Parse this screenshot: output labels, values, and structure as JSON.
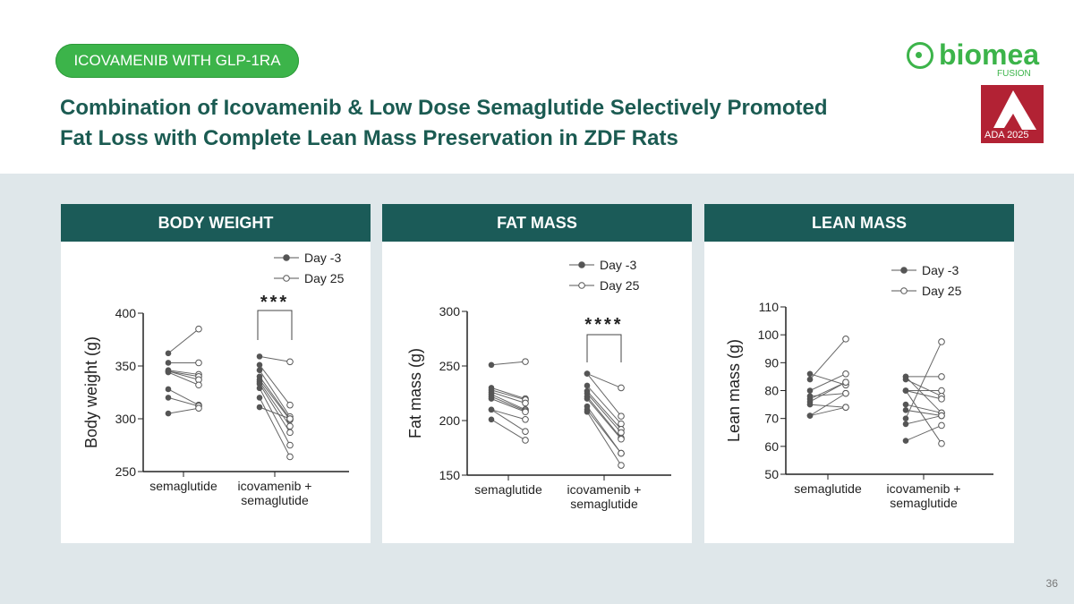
{
  "header": {
    "badge": "ICOVAMENIB WITH GLP-1RA",
    "title_line1": "Combination of Icovamenib & Low Dose Semaglutide Selectively Promoted",
    "title_line2": "Fat Loss with Complete Lean Mass Preservation in ZDF Rats",
    "logo_text": "biomea",
    "logo_sub": "FUSION",
    "ada_text": "ADA 2025"
  },
  "page_number": "36",
  "chart_data": [
    {
      "type": "scatter",
      "title": "BODY WEIGHT",
      "ylabel": "Body weight (g)",
      "ylim": [
        250,
        400
      ],
      "yticks": [
        "250",
        "300",
        "350",
        "400"
      ],
      "categories": [
        "semaglutide",
        "icovamenib + semaglutide"
      ],
      "legend": [
        "Day -3",
        "Day 25"
      ],
      "significance": "***",
      "pairs": [
        [
          [
            362,
            385
          ],
          [
            353,
            353
          ],
          [
            346,
            342
          ],
          [
            345,
            340
          ],
          [
            345,
            337
          ],
          [
            344,
            332
          ],
          [
            328,
            313
          ],
          [
            320,
            312
          ],
          [
            305,
            310
          ]
        ],
        [
          [
            359,
            354
          ],
          [
            351,
            313
          ],
          [
            346,
            302
          ],
          [
            340,
            300
          ],
          [
            337,
            299
          ],
          [
            335,
            293
          ],
          [
            333,
            287
          ],
          [
            329,
            275
          ],
          [
            320,
            264
          ],
          [
            311,
            300
          ]
        ]
      ]
    },
    {
      "type": "scatter",
      "title": "FAT MASS",
      "ylabel": "Fat mass (g)",
      "ylim": [
        150,
        300
      ],
      "yticks": [
        "150",
        "200",
        "250",
        "300"
      ],
      "categories": [
        "semaglutide",
        "icovamenib + semaglutide"
      ],
      "legend": [
        "Day -3",
        "Day 25"
      ],
      "significance": "****",
      "pairs": [
        [
          [
            251,
            254
          ],
          [
            230,
            220
          ],
          [
            228,
            219
          ],
          [
            226,
            216
          ],
          [
            224,
            210
          ],
          [
            222,
            209
          ],
          [
            220,
            208
          ],
          [
            210,
            201
          ],
          [
            210,
            190
          ],
          [
            201,
            182
          ]
        ],
        [
          [
            243,
            230
          ],
          [
            243,
            204
          ],
          [
            232,
            197
          ],
          [
            227,
            192
          ],
          [
            225,
            189
          ],
          [
            222,
            184
          ],
          [
            220,
            183
          ],
          [
            213,
            170
          ],
          [
            210,
            170
          ],
          [
            208,
            159
          ]
        ]
      ]
    },
    {
      "type": "scatter",
      "title": "LEAN MASS",
      "ylabel": "Lean mass (g)",
      "ylim": [
        50,
        110
      ],
      "yticks": [
        "50",
        "60",
        "70",
        "80",
        "90",
        "100",
        "110"
      ],
      "categories": [
        "semaglutide",
        "icovamenib + semaglutide"
      ],
      "legend": [
        "Day -3",
        "Day 25"
      ],
      "significance": "",
      "pairs": [
        [
          [
            84,
            98.5
          ],
          [
            86,
            82
          ],
          [
            80,
            86
          ],
          [
            78,
            79
          ],
          [
            77,
            83
          ],
          [
            76,
            83
          ],
          [
            75,
            74
          ],
          [
            71,
            74
          ],
          [
            71,
            79
          ]
        ],
        [
          [
            85,
            85
          ],
          [
            85,
            72
          ],
          [
            84,
            78
          ],
          [
            80,
            80
          ],
          [
            80,
            77
          ],
          [
            80,
            61
          ],
          [
            75,
            72
          ],
          [
            73,
            71
          ],
          [
            70,
            97.5
          ],
          [
            68,
            71
          ],
          [
            62,
            67.5
          ]
        ]
      ]
    }
  ]
}
